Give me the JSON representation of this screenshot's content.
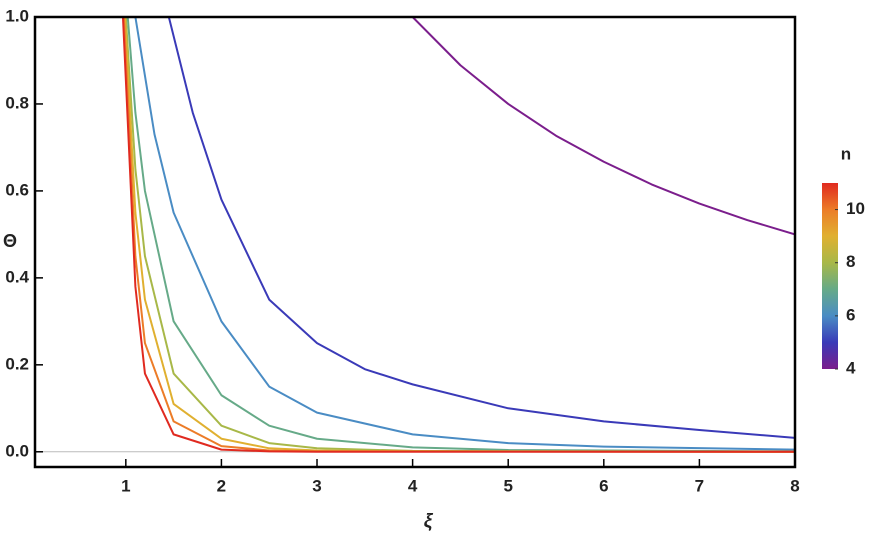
{
  "chart_data": {
    "type": "line",
    "xlabel": "ξ",
    "ylabel": "Θ",
    "xlim": [
      0.05,
      8
    ],
    "ylim": [
      -0.035,
      1.0
    ],
    "xticks": [
      1,
      2,
      3,
      4,
      5,
      6,
      7,
      8
    ],
    "yticks": [
      {
        "value": 0,
        "label": "0.0"
      },
      0.2,
      0.4,
      0.6,
      0.8,
      {
        "value": 1,
        "label": "1.0"
      }
    ],
    "series": [
      {
        "color": "#7b1e8c",
        "x": [
          4,
          4.5,
          5,
          5.5,
          6,
          6.5,
          7,
          7.5,
          8
        ],
        "values": [
          1,
          0.889,
          0.8,
          0.727,
          0.667,
          0.615,
          0.571,
          0.533,
          0.5
        ]
      },
      {
        "color": "#3a3ab8",
        "x": [
          1.45,
          1.7,
          2,
          2.5,
          3,
          3.5,
          4,
          5,
          6,
          7,
          8
        ],
        "values": [
          1,
          0.78,
          0.58,
          0.35,
          0.25,
          0.19,
          0.155,
          0.1,
          0.07,
          0.05,
          0.032
        ]
      },
      {
        "color": "#4a8cc4",
        "x": [
          1.1,
          1.3,
          1.5,
          2,
          2.5,
          3,
          4,
          5,
          6,
          8
        ],
        "values": [
          1,
          0.73,
          0.55,
          0.3,
          0.15,
          0.09,
          0.04,
          0.02,
          0.012,
          0.005
        ]
      },
      {
        "color": "#66aa88",
        "x": [
          1.02,
          1.1,
          1.2,
          1.5,
          2,
          2.5,
          3,
          4,
          5,
          8
        ],
        "values": [
          1,
          0.78,
          0.6,
          0.3,
          0.13,
          0.06,
          0.03,
          0.01,
          0.004,
          0.001
        ]
      },
      {
        "color": "#a8b848",
        "x": [
          1.0,
          1.1,
          1.2,
          1.5,
          2,
          2.5,
          3,
          4,
          8
        ],
        "values": [
          1,
          0.65,
          0.45,
          0.18,
          0.06,
          0.02,
          0.008,
          0.002,
          0
        ]
      },
      {
        "color": "#e0b030",
        "x": [
          0.99,
          1.1,
          1.2,
          1.5,
          2,
          2.5,
          3,
          4,
          8
        ],
        "values": [
          1,
          0.55,
          0.35,
          0.11,
          0.03,
          0.008,
          0.003,
          0.001,
          0
        ]
      },
      {
        "color": "#ec7c28",
        "x": [
          0.98,
          1.1,
          1.2,
          1.5,
          2,
          2.5,
          3,
          8
        ],
        "values": [
          1,
          0.45,
          0.25,
          0.07,
          0.013,
          0.003,
          0.001,
          0
        ]
      },
      {
        "color": "#e02a20",
        "x": [
          0.97,
          1.1,
          1.2,
          1.5,
          2,
          2.5,
          3,
          8
        ],
        "values": [
          1,
          0.38,
          0.18,
          0.04,
          0.005,
          0.001,
          0,
          0
        ]
      }
    ],
    "colorbar": {
      "title": "n",
      "lim": [
        4,
        11
      ],
      "ticks": [
        4,
        6,
        8,
        10
      ],
      "colors": [
        "#7b1e8c",
        "#3a3ab8",
        "#4a8cc4",
        "#66aa88",
        "#a8b848",
        "#e0b030",
        "#ec7c28",
        "#e02a20"
      ]
    }
  }
}
